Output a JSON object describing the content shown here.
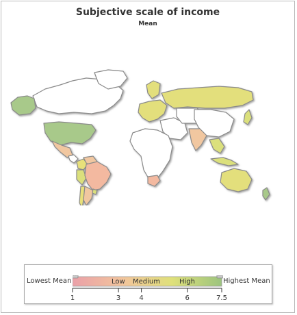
{
  "title": "Subjective scale of income",
  "subtitle": "Mean",
  "legend": {
    "lowest_label": "Lowest Mean",
    "highest_label": "Highest Mean",
    "bands": [
      "Low",
      "Medium",
      "High"
    ],
    "colors": [
      "#eaa0a8",
      "#f2c49c",
      "#dfe07a",
      "#9cc47e"
    ],
    "ticks": [
      "1",
      "3",
      "4",
      "6",
      "7.5"
    ],
    "range": [
      1,
      7.5
    ]
  },
  "map": {
    "ocean": "#ffffff",
    "no_data_color": "#ffffff",
    "border_color": "#8a8a8a",
    "shadow_color": "#c9c9c9",
    "regions": [
      {
        "name": "Alaska",
        "color": "#a8c98a"
      },
      {
        "name": "Canada",
        "color": "#ffffff"
      },
      {
        "name": "United States",
        "color": "#a8c98a"
      },
      {
        "name": "Mexico",
        "color": "#f1c7a0"
      },
      {
        "name": "Colombia",
        "color": "#e8e07a"
      },
      {
        "name": "Venezuela",
        "color": "#f1c7a0"
      },
      {
        "name": "Brazil",
        "color": "#f3b9a0"
      },
      {
        "name": "Peru",
        "color": "#dbe07c"
      },
      {
        "name": "Chile",
        "color": "#e8e07a"
      },
      {
        "name": "Argentina",
        "color": "#f1c7a0"
      },
      {
        "name": "Uruguay",
        "color": "#dbe07c"
      },
      {
        "name": "Europe",
        "color": "#e3df7c"
      },
      {
        "name": "Russia",
        "color": "#e3df7c"
      },
      {
        "name": "Africa",
        "color": "#ffffff"
      },
      {
        "name": "South Africa",
        "color": "#f3b9a0"
      },
      {
        "name": "Middle East",
        "color": "#ffffff"
      },
      {
        "name": "India",
        "color": "#f1c7a0"
      },
      {
        "name": "China",
        "color": "#ffffff"
      },
      {
        "name": "Japan",
        "color": "#dbe07c"
      },
      {
        "name": "Southeast Asia",
        "color": "#dbe07c"
      },
      {
        "name": "Australia",
        "color": "#e3df7c"
      },
      {
        "name": "New Zealand",
        "color": "#a8c98a"
      }
    ]
  }
}
